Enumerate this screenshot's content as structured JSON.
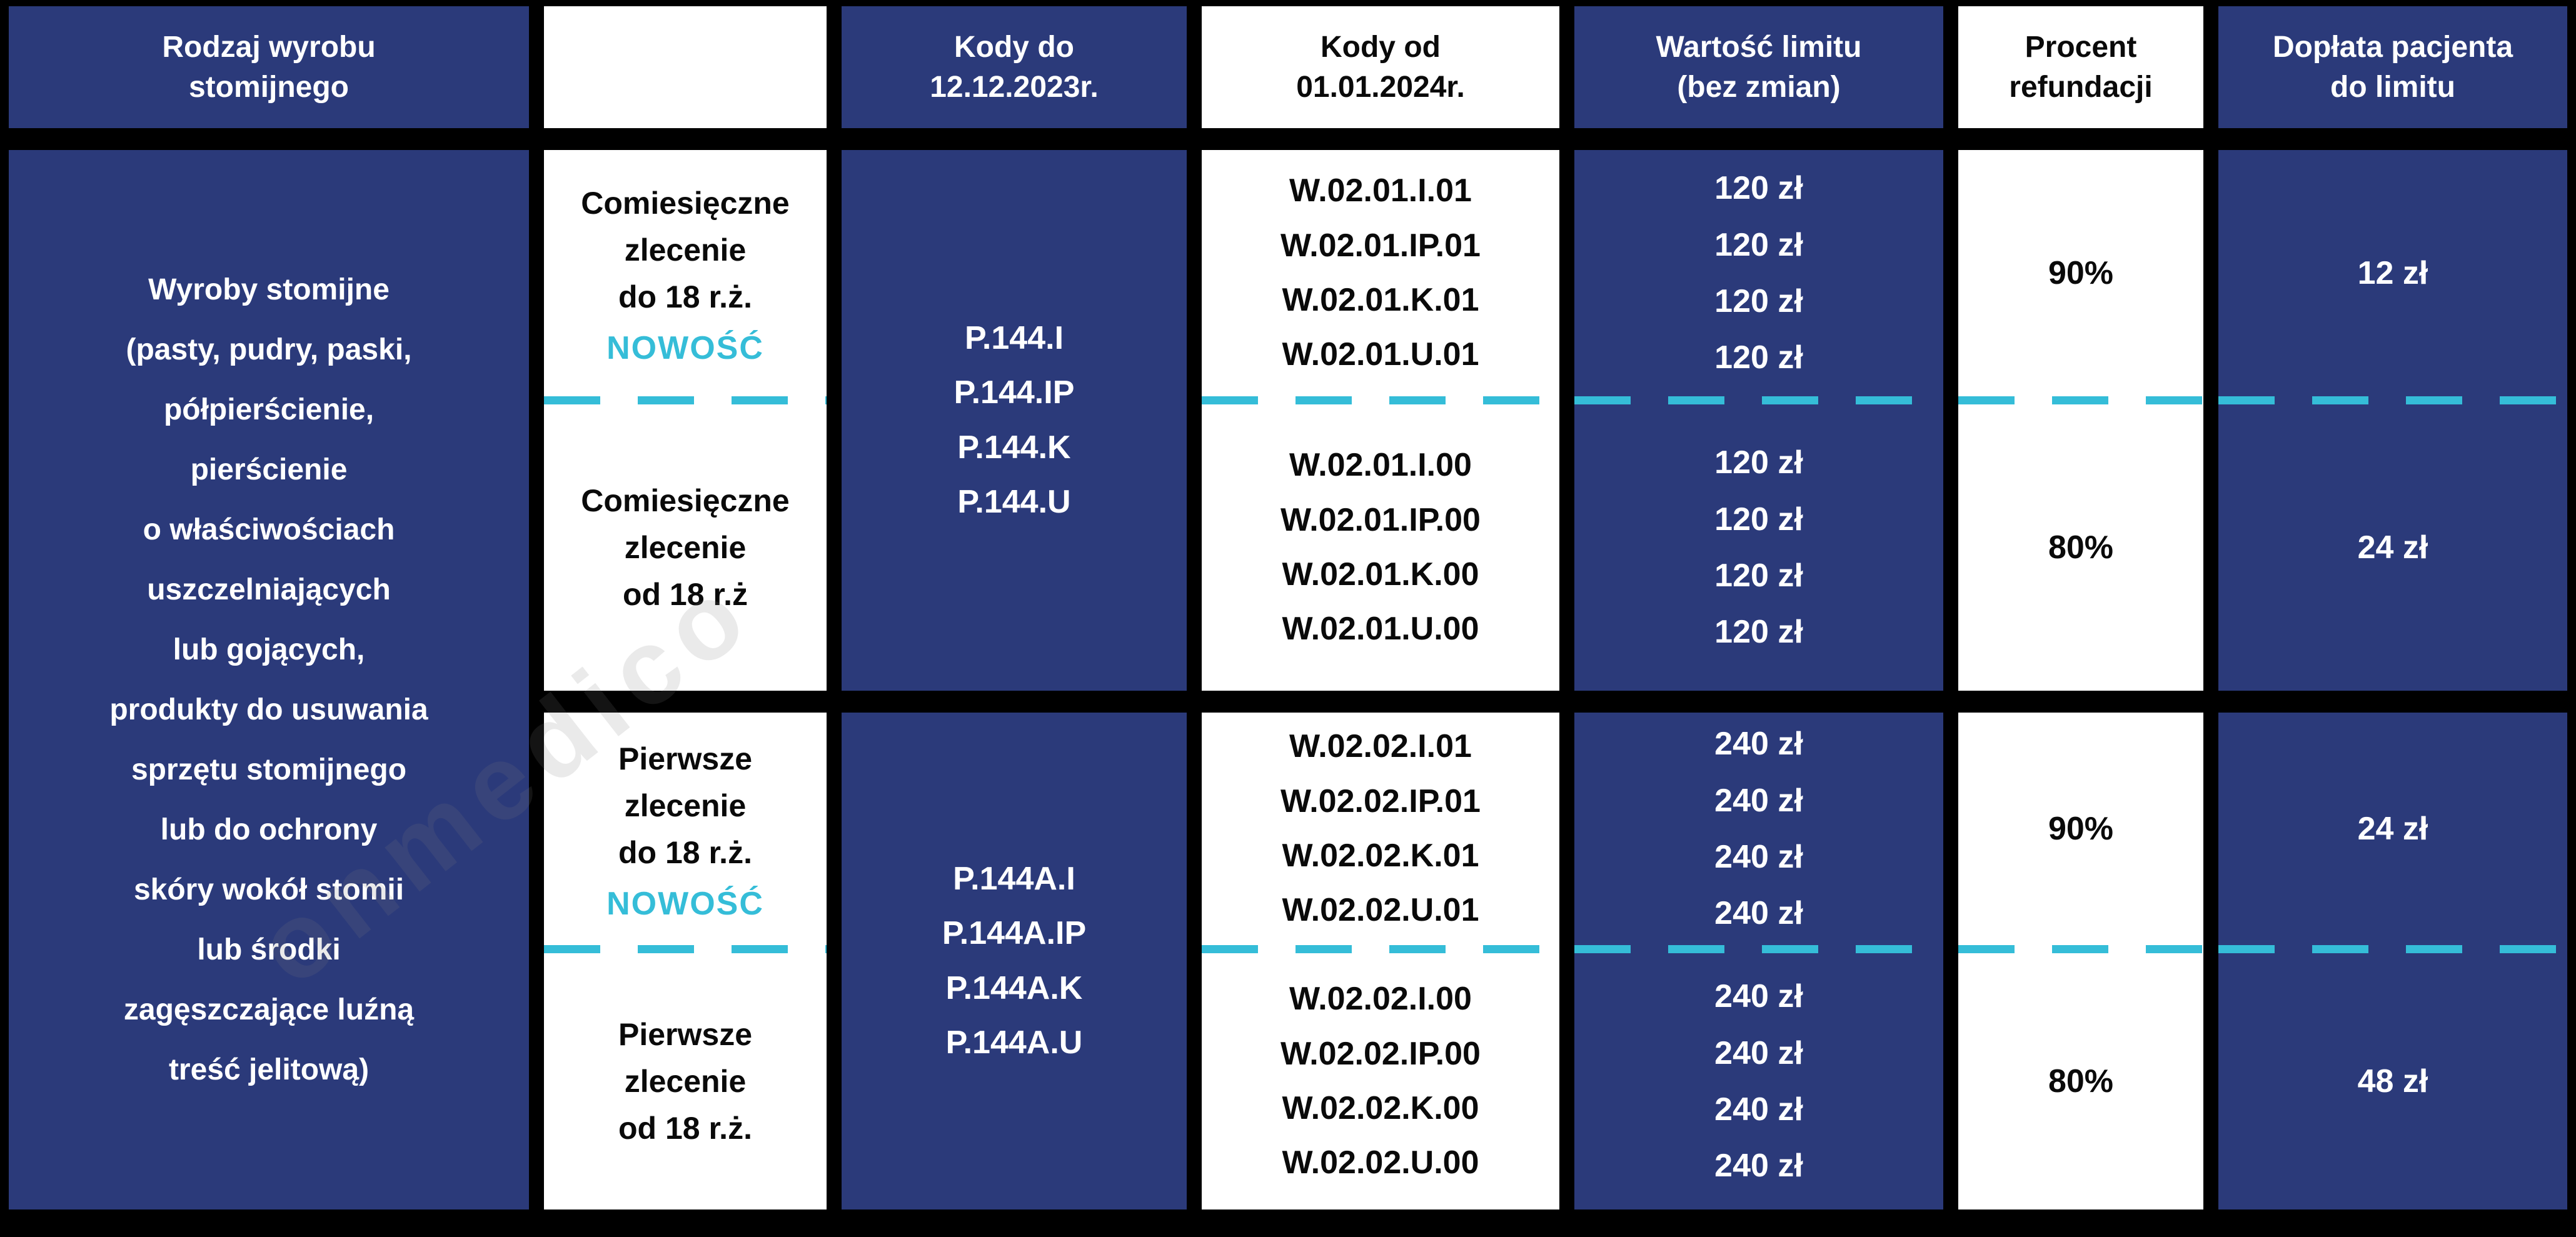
{
  "colors": {
    "blue": "#2b3a7a",
    "cyan": "#35bdd8",
    "border": "#000000"
  },
  "header": {
    "product": [
      "Rodzaj wyrobu",
      "stomijnego"
    ],
    "order": "",
    "codes_old": [
      "Kody do",
      "12.12.2023r."
    ],
    "codes_new": [
      "Kody od",
      "01.01.2024r."
    ],
    "limit": [
      "Wartość limitu",
      "(bez zmian)"
    ],
    "refund": [
      "Procent",
      "refundacji"
    ],
    "copay": [
      "Dopłata pacjenta",
      "do limitu"
    ]
  },
  "product": [
    "Wyroby stomijne",
    "(pasty, pudry, paski,",
    "półpierścienie,",
    "pierścienie",
    "o właściwościach",
    "uszczelniających",
    "lub gojących,",
    "produkty do usuwania",
    "sprzętu stomijnego",
    "lub do ochrony",
    "skóry wokół stomii",
    "lub środki",
    "zagęszczające luźną",
    "treść jelitową)"
  ],
  "groups": [
    {
      "codes_old": [
        "P.144.I",
        "P.144.IP",
        "P.144.K",
        "P.144.U"
      ],
      "rows": [
        {
          "order": [
            "Comiesięczne",
            "zlecenie",
            "do 18 r.ż."
          ],
          "badge": "NOWOŚĆ",
          "codes_new": [
            "W.02.01.I.01",
            "W.02.01.IP.01",
            "W.02.01.K.01",
            "W.02.01.U.01"
          ],
          "limits": [
            "120 zł",
            "120 zł",
            "120 zł",
            "120 zł"
          ],
          "refund": "90%",
          "copay": "12 zł"
        },
        {
          "order": [
            "Comiesięczne",
            "zlecenie",
            "od 18 r.ż"
          ],
          "codes_new": [
            "W.02.01.I.00",
            "W.02.01.IP.00",
            "W.02.01.K.00",
            "W.02.01.U.00"
          ],
          "limits": [
            "120 zł",
            "120 zł",
            "120 zł",
            "120 zł"
          ],
          "refund": "80%",
          "copay": "24 zł"
        }
      ]
    },
    {
      "codes_old": [
        "P.144A.I",
        "P.144A.IP",
        "P.144A.K",
        "P.144A.U"
      ],
      "rows": [
        {
          "order": [
            "Pierwsze",
            "zlecenie",
            "do 18 r.ż."
          ],
          "badge": "NOWOŚĆ",
          "codes_new": [
            "W.02.02.I.01",
            "W.02.02.IP.01",
            "W.02.02.K.01",
            "W.02.02.U.01"
          ],
          "limits": [
            "240 zł",
            "240 zł",
            "240 zł",
            "240 zł"
          ],
          "refund": "90%",
          "copay": "24 zł"
        },
        {
          "order": [
            "Pierwsze",
            "zlecenie",
            "od 18 r.ż."
          ],
          "codes_new": [
            "W.02.02.I.00",
            "W.02.02.IP.00",
            "W.02.02.K.00",
            "W.02.02.U.00"
          ],
          "limits": [
            "240 zł",
            "240 zł",
            "240 zł",
            "240 zł"
          ],
          "refund": "80%",
          "copay": "48 zł"
        }
      ]
    }
  ],
  "watermark": "onmedico"
}
